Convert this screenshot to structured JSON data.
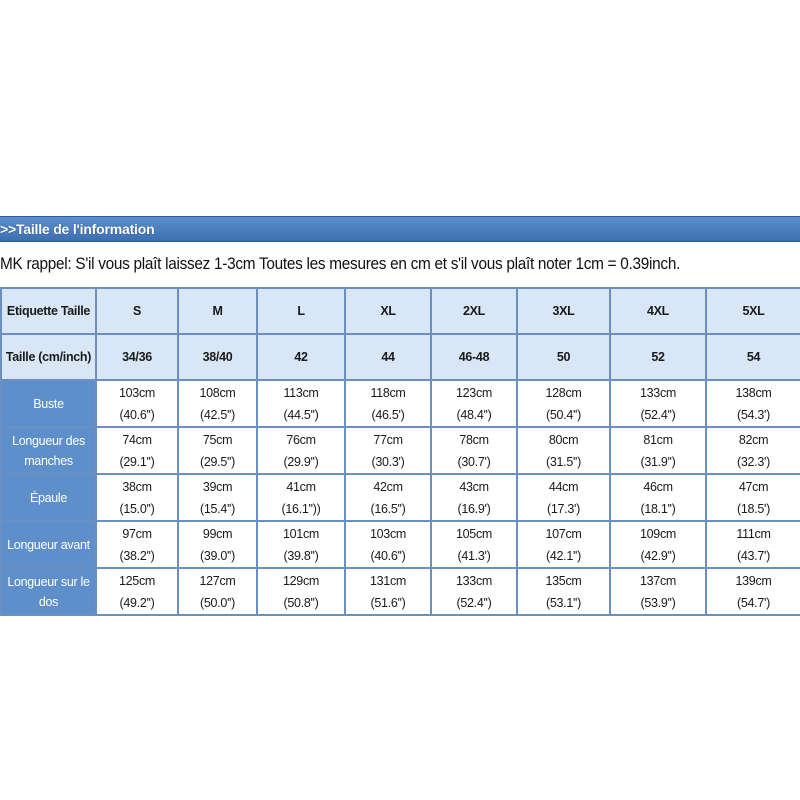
{
  "section_title": ">>Taille de l'information",
  "note": "MK rappel: S'il vous plaît laissez 1-3cm Toutes les mesures en cm et s'il vous plaît noter 1cm = 0.39inch.",
  "table": {
    "label_header": "Etiquette Taille",
    "labels": [
      "S",
      "M",
      "L",
      "XL",
      "2XL",
      "3XL",
      "4XL",
      "5XL"
    ],
    "size_header": "Taille (cm/inch)",
    "sizes": [
      "34/36",
      "38/40",
      "42",
      "44",
      "46-48",
      "50",
      "52",
      "54"
    ],
    "rows": [
      {
        "name": "Buste",
        "cm": [
          "103cm",
          "108cm",
          "113cm",
          "118cm",
          "123cm",
          "128cm",
          "133cm",
          "138cm"
        ],
        "inch": [
          "(40.6'')",
          "(42.5'')",
          "(44.5'')",
          "(46.5')",
          "(48.4'')",
          "(50.4'')",
          "(52.4'')",
          "(54.3')"
        ]
      },
      {
        "name": "Longueur des manches",
        "cm": [
          "74cm",
          "75cm",
          "76cm",
          "77cm",
          "78cm",
          "80cm",
          "81cm",
          "82cm"
        ],
        "inch": [
          "(29.1'')",
          "(29.5'')",
          "(29.9'')",
          "(30.3')",
          "(30.7')",
          "(31.5'')",
          "(31.9'')",
          "(32.3')"
        ]
      },
      {
        "name": "Épaule",
        "cm": [
          "38cm",
          "39cm",
          "41cm",
          "42cm",
          "43cm",
          "44cm",
          "46cm",
          "47cm"
        ],
        "inch": [
          "(15.0'')",
          "(15.4'')",
          "(16.1''))",
          "(16.5'')",
          "(16.9')",
          "(17.3')",
          "(18.1'')",
          "(18.5')"
        ]
      },
      {
        "name": "Longueur avant",
        "cm": [
          "97cm",
          "99cm",
          "101cm",
          "103cm",
          "105cm",
          "107cm",
          "109cm",
          "111cm"
        ],
        "inch": [
          "(38.2'')",
          "(39.0'')",
          "(39.8'')",
          "(40.6'')",
          "(41.3')",
          "(42.1'')",
          "(42.9'')",
          "(43.7')"
        ]
      },
      {
        "name": "Longueur sur le dos",
        "cm": [
          "125cm",
          "127cm",
          "129cm",
          "131cm",
          "133cm",
          "135cm",
          "137cm",
          "139cm"
        ],
        "inch": [
          "(49.2'')",
          "(50.0'')",
          "(50.8'')",
          "(51.6'')",
          "(52.4'')",
          "(53.1'')",
          "(53.9'')",
          "(54.7')"
        ]
      }
    ]
  },
  "colors": {
    "header_bar": "#3d6fb0",
    "row_label_bg": "#5f8fcb",
    "header_cell_bg": "#d8e6f6",
    "border": "#6b8fbf"
  }
}
